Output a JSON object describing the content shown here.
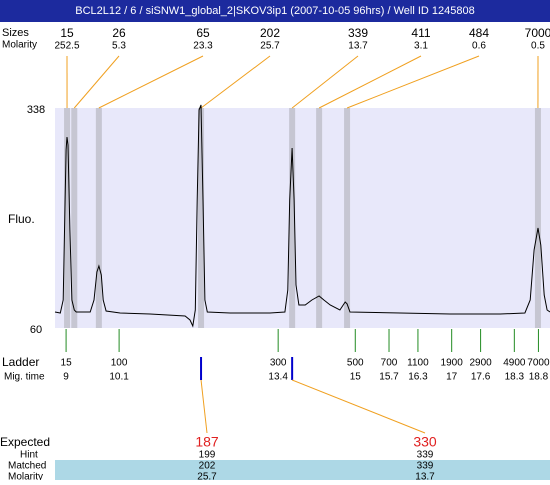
{
  "header": {
    "title": "BCL2L12 / 6 / siSNW1_global_2|SKOV3ip1 (2007-10-05 96hrs) / Well ID 1245808"
  },
  "labels": {
    "size": "Sizes",
    "molarity": "Molarity",
    "fluo": "Fluo.",
    "ladder": "Ladder",
    "mig_time": "Mig. time",
    "expected": "Expected",
    "hint": "Hint",
    "matched": "Matched",
    "molarity_expected": "Molarity"
  },
  "chart_data": {
    "type": "line",
    "color": "#000000",
    "xlim": [
      8.77,
      19.04
    ],
    "ylim": [
      60,
      338
    ],
    "yticks": [
      60,
      338
    ],
    "x": [
      8.77,
      8.88,
      8.94,
      8.98,
      9.0,
      9.02,
      9.04,
      9.08,
      9.12,
      9.17,
      9.21,
      9.5,
      9.58,
      9.64,
      9.68,
      9.73,
      9.77,
      9.83,
      10.12,
      10.74,
      11.47,
      11.57,
      11.63,
      11.68,
      11.72,
      11.76,
      11.8,
      11.84,
      11.88,
      11.93,
      12.4,
      13.23,
      13.54,
      13.6,
      13.64,
      13.69,
      13.73,
      13.77,
      13.83,
      13.96,
      14.1,
      14.25,
      14.35,
      14.48,
      14.68,
      14.79,
      14.83,
      14.89,
      15.93,
      16.97,
      18.01,
      18.52,
      18.63,
      18.71,
      18.79,
      18.85,
      18.92,
      18.98,
      19.04
    ],
    "y": [
      80.2,
      79.0,
      95.4,
      221.8,
      285.0,
      301.4,
      291.3,
      183.9,
      95.4,
      82.8,
      80.2,
      80.2,
      95.4,
      130.8,
      138.4,
      127.0,
      95.4,
      81.5,
      79.0,
      77.7,
      75.2,
      70.1,
      62.5,
      82.8,
      221.8,
      335.6,
      341.9,
      221.8,
      95.4,
      80.2,
      79.0,
      79.0,
      80.2,
      108.0,
      221.8,
      287.5,
      221.8,
      114.4,
      89.1,
      89.1,
      95.4,
      100.4,
      95.4,
      89.1,
      82.8,
      92.9,
      90.4,
      80.2,
      79.0,
      77.7,
      77.7,
      79.0,
      95.4,
      158.6,
      186.4,
      164.9,
      101.7,
      82.8,
      80.2
    ],
    "peaks": {
      "sizes": [
        15,
        26,
        65,
        202,
        339,
        411,
        484,
        7000
      ],
      "molarity": [
        252.5,
        5.3,
        23.3,
        25.7,
        13.7,
        3.1,
        0.6,
        0.5
      ],
      "time": [
        9.02,
        9.17,
        9.68,
        11.8,
        13.69,
        14.25,
        14.83,
        18.79
      ]
    },
    "ladder": {
      "sizes": [
        15,
        100,
        300,
        500,
        700,
        1100,
        1900,
        2900,
        4900,
        7000
      ],
      "mig_time": [
        9,
        10.1,
        13.4,
        15,
        15.7,
        16.3,
        17,
        17.6,
        18.3,
        18.8
      ]
    },
    "expected": [
      {
        "expected": 187,
        "hint": 199,
        "matched": 202,
        "molarity": 25.7
      },
      {
        "expected": 330,
        "hint": 339,
        "matched": 339,
        "molarity": 13.7
      }
    ]
  }
}
